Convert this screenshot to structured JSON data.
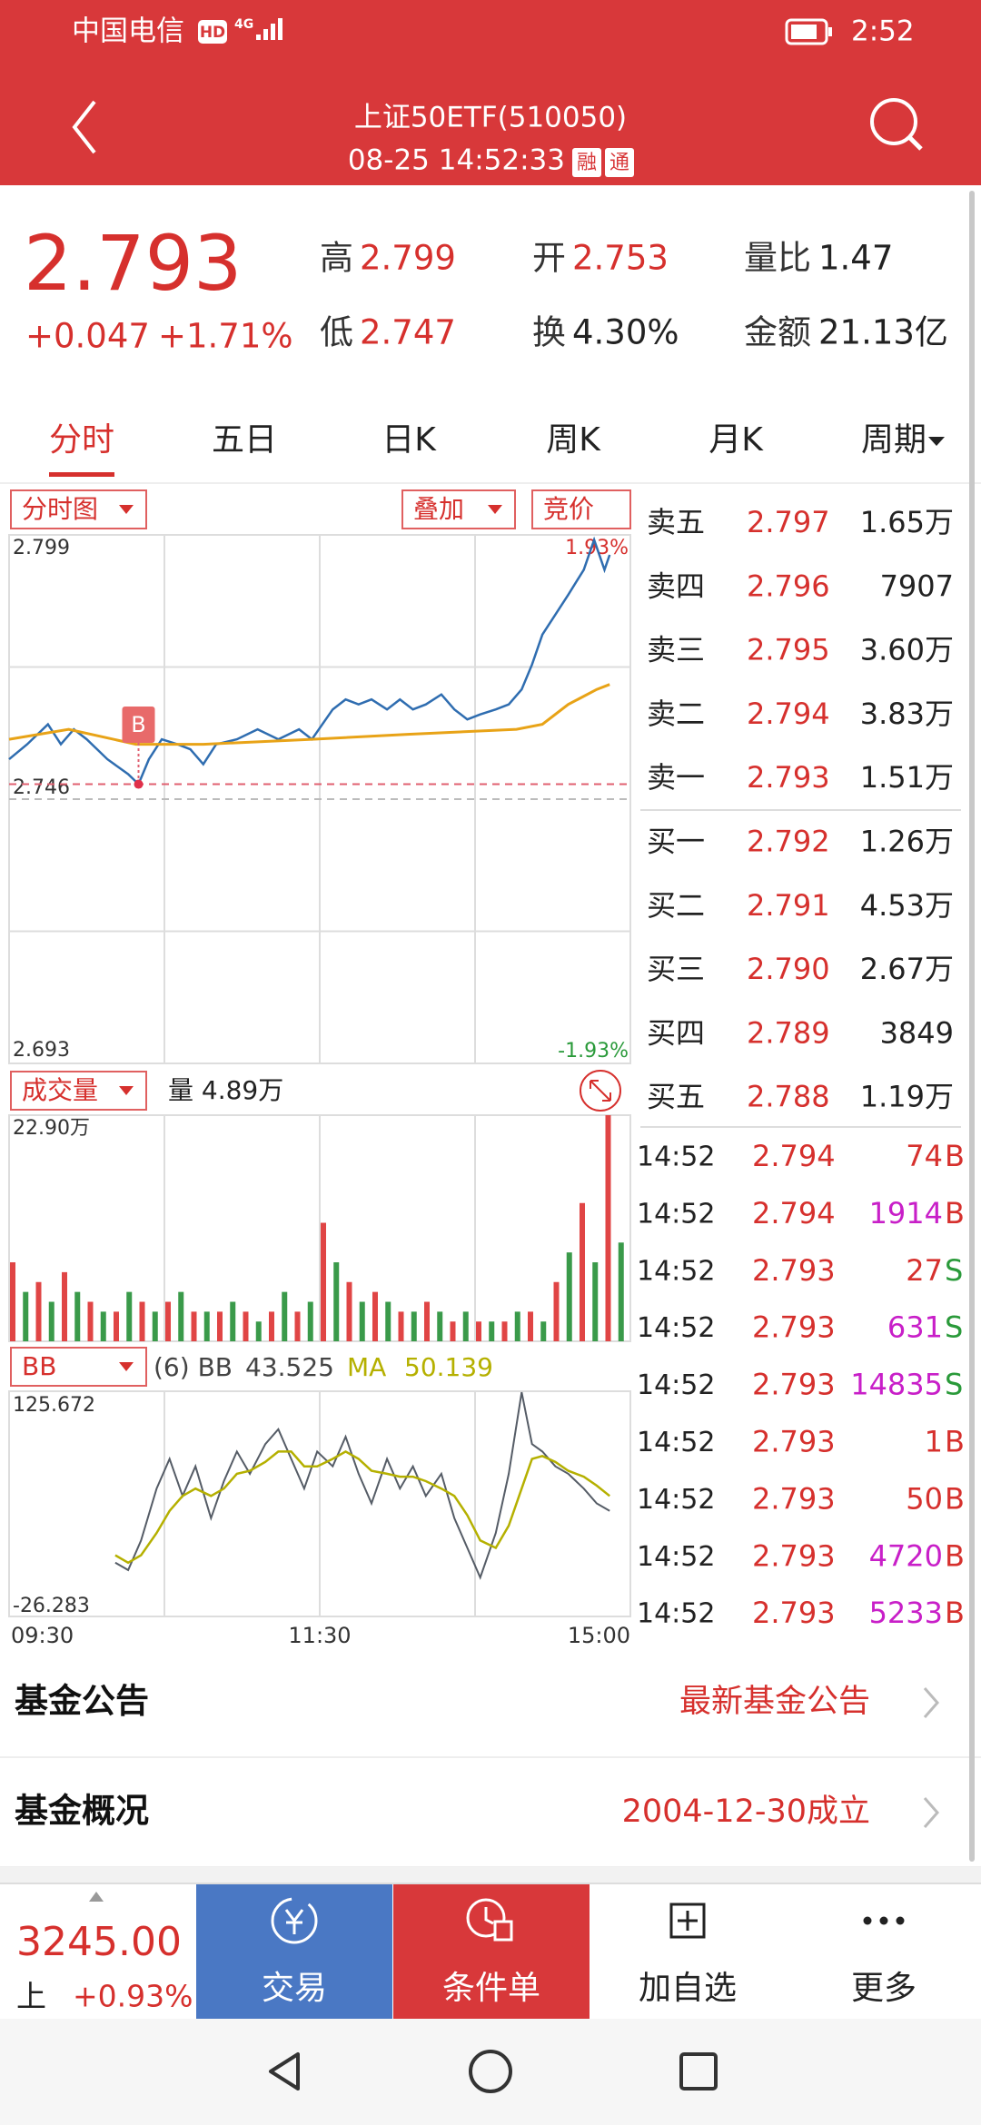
{
  "status_bar": {
    "carrier": "中国电信",
    "hd": "HD",
    "network": "4G",
    "time": "2:52"
  },
  "header": {
    "title": "上证50ETF(510050)",
    "datetime": "08-25 14:52:33",
    "badges": [
      "融",
      "通"
    ]
  },
  "quote": {
    "price": "2.793",
    "change": "+0.047",
    "change_pct": "+1.71%",
    "stats": [
      {
        "label": "高",
        "value": "2.799",
        "color": "#d6302d"
      },
      {
        "label": "开",
        "value": "2.753",
        "color": "#d6302d"
      },
      {
        "label": "量比",
        "value": "1.47",
        "color": "#222222"
      },
      {
        "label": "低",
        "value": "2.747",
        "color": "#d6302d"
      },
      {
        "label": "换",
        "value": "4.30%",
        "color": "#222222"
      },
      {
        "label": "金额",
        "value": "21.13亿",
        "color": "#222222"
      }
    ]
  },
  "tabs": {
    "items": [
      "分时",
      "五日",
      "日K",
      "周K",
      "月K",
      "周期"
    ],
    "active": 0
  },
  "toolbar": {
    "mode": "分时图",
    "overlay": "叠加",
    "auction": "竞价"
  },
  "price_chart": {
    "type": "line",
    "xlim": [
      0,
      240
    ],
    "xticks": [
      {
        "value": 0,
        "label": "09:30"
      },
      {
        "value": 120,
        "label": "11:30"
      },
      {
        "value": 240,
        "label": "15:00"
      }
    ],
    "ylim": [
      2.693,
      2.799
    ],
    "yticks": [
      2.693,
      2.746,
      2.799
    ],
    "pct_labels": [
      "1.93%",
      "-1.93%"
    ],
    "marker": "B",
    "series": [
      {
        "color": "#2f6db0",
        "x": [
          0,
          7,
          15,
          20,
          25,
          30,
          38,
          46,
          50,
          54,
          59,
          65,
          70,
          75,
          80,
          88,
          96,
          104,
          112,
          117,
          125,
          130,
          135,
          140,
          146,
          151,
          156,
          161,
          167,
          172,
          177,
          182,
          188,
          193,
          198,
          202,
          206,
          211,
          216,
          222,
          226,
          230,
          232
        ],
        "values": [
          2.754,
          2.757,
          2.761,
          2.757,
          2.76,
          2.758,
          2.754,
          2.751,
          2.749,
          2.754,
          2.758,
          2.757,
          2.756,
          2.753,
          2.757,
          2.758,
          2.76,
          2.758,
          2.76,
          2.758,
          2.764,
          2.766,
          2.765,
          2.766,
          2.764,
          2.766,
          2.764,
          2.765,
          2.767,
          2.764,
          2.762,
          2.763,
          2.764,
          2.765,
          2.768,
          2.773,
          2.779,
          2.783,
          2.787,
          2.792,
          2.798,
          2.792,
          2.795
        ]
      },
      {
        "color": "#e8a317",
        "x": [
          0,
          23,
          49,
          75,
          117,
          154,
          196,
          206,
          216,
          227,
          232
        ],
        "values": [
          2.758,
          2.76,
          2.757,
          2.757,
          2.758,
          2.759,
          2.76,
          2.761,
          2.765,
          2.768,
          2.769
        ]
      }
    ]
  },
  "volume_chart": {
    "type": "bar",
    "label": "成交量",
    "volume_text": "量 4.89万",
    "max_label": "22.90万",
    "xlim": [
      0,
      240
    ],
    "ylim": [
      0,
      22.9
    ],
    "series": [
      {
        "color": "#e04545",
        "x": [
          0,
          10,
          20,
          30,
          40,
          50,
          60,
          70,
          80,
          90,
          100,
          110,
          120,
          130,
          140,
          150,
          160,
          170,
          180,
          190,
          200,
          210,
          220,
          230
        ],
        "values": [
          8,
          6,
          7,
          4,
          3,
          4,
          4,
          3,
          3,
          3,
          3,
          3,
          12,
          6,
          5,
          3,
          4,
          2,
          2,
          2,
          3,
          6,
          14,
          22.9
        ]
      },
      {
        "color": "#3a9a4a",
        "x": [
          5,
          15,
          25,
          35,
          45,
          55,
          65,
          75,
          85,
          95,
          105,
          115,
          125,
          135,
          145,
          155,
          165,
          175,
          185,
          195,
          205,
          215,
          225,
          235
        ],
        "values": [
          5,
          4,
          5,
          3,
          5,
          3,
          5,
          3,
          4,
          2,
          5,
          4,
          8,
          4,
          4,
          3,
          3,
          3,
          2,
          3,
          2,
          9,
          8,
          10
        ]
      }
    ]
  },
  "bb_chart": {
    "type": "line",
    "label": "BB",
    "param_text": "(6) BB",
    "bb_value": "43.525",
    "ma_label": "MA",
    "ma_value": "50.139",
    "xlim": [
      0,
      240
    ],
    "ylim": [
      -26.283,
      125.672
    ],
    "yticks": [
      -26.283,
      125.672
    ],
    "x": [
      41,
      46,
      51,
      57,
      62,
      67,
      72,
      78,
      83,
      88,
      93,
      99,
      104,
      109,
      114,
      119,
      125,
      130,
      135,
      140,
      146,
      151,
      156,
      161,
      167,
      172,
      177,
      182,
      188,
      193,
      198,
      202,
      206,
      211,
      216,
      222,
      227,
      232
    ],
    "series": [
      {
        "color": "#555c66",
        "values": [
          10,
          5,
          25,
          60,
          80,
          55,
          75,
          40,
          65,
          85,
          70,
          90,
          100,
          80,
          60,
          85,
          75,
          95,
          70,
          50,
          80,
          60,
          75,
          55,
          70,
          40,
          20,
          0,
          30,
          70,
          125,
          90,
          85,
          75,
          70,
          60,
          50,
          45
        ]
      },
      {
        "color": "#b5b000",
        "values": [
          15,
          10,
          15,
          30,
          45,
          55,
          60,
          55,
          60,
          70,
          72,
          78,
          85,
          85,
          75,
          75,
          80,
          85,
          80,
          72,
          70,
          68,
          68,
          65,
          60,
          55,
          42,
          25,
          20,
          35,
          60,
          80,
          82,
          78,
          72,
          68,
          62,
          55
        ]
      }
    ]
  },
  "order_book": {
    "asks": [
      {
        "label": "卖五",
        "price": "2.797",
        "volume": "1.65万"
      },
      {
        "label": "卖四",
        "price": "2.796",
        "volume": "7907"
      },
      {
        "label": "卖三",
        "price": "2.795",
        "volume": "3.60万"
      },
      {
        "label": "卖二",
        "price": "2.794",
        "volume": "3.83万"
      },
      {
        "label": "卖一",
        "price": "2.793",
        "volume": "1.51万"
      }
    ],
    "bids": [
      {
        "label": "买一",
        "price": "2.792",
        "volume": "1.26万"
      },
      {
        "label": "买二",
        "price": "2.791",
        "volume": "4.53万"
      },
      {
        "label": "买三",
        "price": "2.790",
        "volume": "2.67万"
      },
      {
        "label": "买四",
        "price": "2.789",
        "volume": "3849"
      },
      {
        "label": "买五",
        "price": "2.788",
        "volume": "1.19万"
      }
    ]
  },
  "trades": [
    {
      "time": "14:52",
      "price": "2.794",
      "volume": "74",
      "side": "B",
      "volume_color": "#d6302d",
      "side_color": "#d6302d"
    },
    {
      "time": "14:52",
      "price": "2.794",
      "volume": "1914",
      "side": "B",
      "volume_color": "#c81fc8",
      "side_color": "#d6302d"
    },
    {
      "time": "14:52",
      "price": "2.793",
      "volume": "27",
      "side": "S",
      "volume_color": "#d6302d",
      "side_color": "#2a9a3a"
    },
    {
      "time": "14:52",
      "price": "2.793",
      "volume": "631",
      "side": "S",
      "volume_color": "#c81fc8",
      "side_color": "#2a9a3a"
    },
    {
      "time": "14:52",
      "price": "2.793",
      "volume": "14835",
      "side": "S",
      "volume_color": "#c81fc8",
      "side_color": "#2a9a3a"
    },
    {
      "time": "14:52",
      "price": "2.793",
      "volume": "1",
      "side": "B",
      "volume_color": "#d6302d",
      "side_color": "#d6302d"
    },
    {
      "time": "14:52",
      "price": "2.793",
      "volume": "50",
      "side": "B",
      "volume_color": "#d6302d",
      "side_color": "#d6302d"
    },
    {
      "time": "14:52",
      "price": "2.793",
      "volume": "4720",
      "side": "B",
      "volume_color": "#c81fc8",
      "side_color": "#d6302d"
    },
    {
      "time": "14:52",
      "price": "2.793",
      "volume": "5233",
      "side": "B",
      "volume_color": "#c81fc8",
      "side_color": "#d6302d"
    }
  ],
  "fund_rows": [
    {
      "title": "基金公告",
      "value": "最新基金公告"
    },
    {
      "title": "基金概况",
      "value": "2004-12-30成立"
    }
  ],
  "bottom_bar": {
    "index_value": "3245.00",
    "index_name": "上",
    "index_change": "+0.93%",
    "buttons": [
      "交易",
      "条件单",
      "加自选",
      "更多"
    ]
  }
}
